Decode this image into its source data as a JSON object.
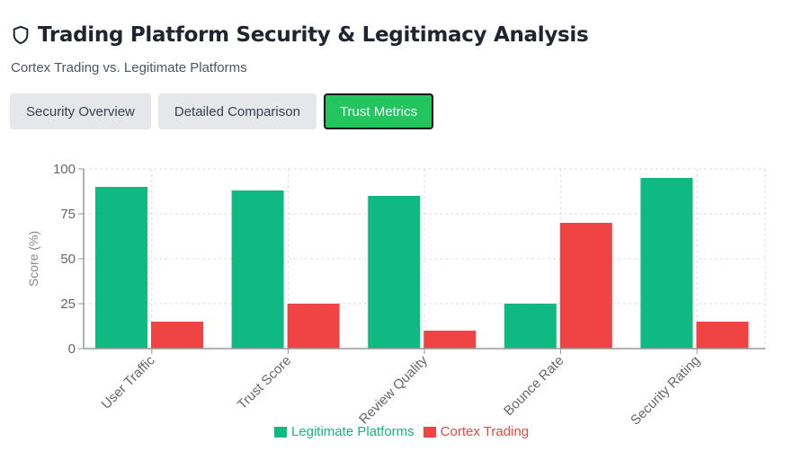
{
  "header": {
    "title": "Trading Platform Security & Legitimacy Analysis",
    "icon": "shield-icon",
    "subtitle": "Cortex Trading vs. Legitimate Platforms"
  },
  "tabs": [
    {
      "label": "Security Overview",
      "active": false
    },
    {
      "label": "Detailed Comparison",
      "active": false
    },
    {
      "label": "Trust Metrics",
      "active": true
    }
  ],
  "chart_data": {
    "type": "bar",
    "categories": [
      "User Traffic",
      "Trust Score",
      "Review Quality",
      "Bounce Rate",
      "Security Rating"
    ],
    "series": [
      {
        "name": "Legitimate Platforms",
        "color": "#10b981",
        "values": [
          90,
          88,
          85,
          25,
          95
        ]
      },
      {
        "name": "Cortex Trading",
        "color": "#ef4444",
        "values": [
          15,
          25,
          10,
          70,
          15
        ]
      }
    ],
    "ylabel": "Score (%)",
    "ylim": [
      0,
      100
    ],
    "yticks": [
      0,
      25,
      50,
      75,
      100
    ],
    "grid": true,
    "legend": "bottom"
  }
}
